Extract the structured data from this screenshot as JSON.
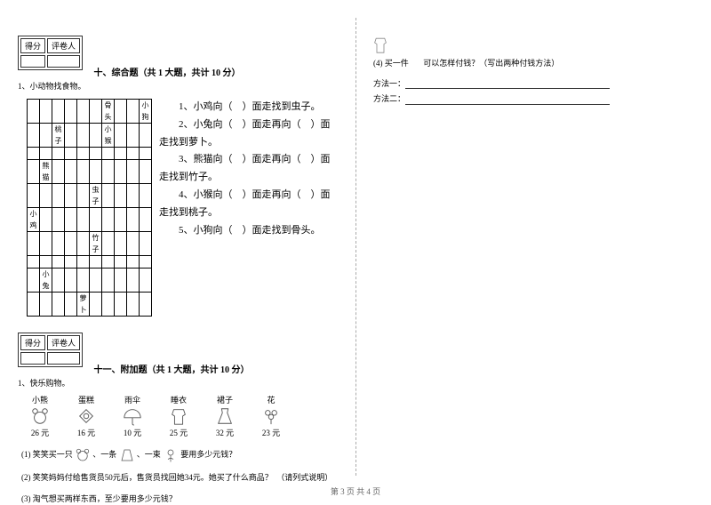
{
  "scorebox": {
    "c1": "得分",
    "c2": "评卷人"
  },
  "section10": {
    "title": "十、综合题（共 1 大题，共计 10 分）",
    "sub": "1、小动物找食物。",
    "grid_labels": {
      "r1c7": "骨头",
      "r1c10": "小狗",
      "r2c3": "桃子",
      "r2c7": "小猴",
      "r4c2": "熊猫",
      "r5c6": "虫子",
      "r6c1": "小鸡",
      "r7c6": "竹子",
      "r9c2": "小兔",
      "r10c5": "萝卜"
    },
    "lines": [
      "　　1、小鸡向（　）面走找到虫子。",
      "　　2、小兔向（　）面走再向（　）面走找到萝卜。",
      "　　3、熊猫向（　）面走再向（　）面走找到竹子。",
      "　　4、小猴向（　）面走再向（　）面走找到桃子。",
      "　　5、小狗向（　）面走找到骨头。"
    ]
  },
  "section11": {
    "title": "十一、附加题（共 1 大题，共计 10 分）",
    "sub": "1、快乐购物。",
    "items": [
      {
        "name": "小熊",
        "price": "26 元"
      },
      {
        "name": "蛋糕",
        "price": "16 元"
      },
      {
        "name": "雨伞",
        "price": "10 元"
      },
      {
        "name": "睡衣",
        "price": "25 元"
      },
      {
        "name": "裙子",
        "price": "32 元"
      },
      {
        "name": "花",
        "price": "23 元"
      }
    ],
    "q1_a": "(1) 笑笑买一只",
    "q1_b": "、一条",
    "q1_c": "、一束",
    "q1_d": "要用多少元钱？",
    "q2": "(2) 笑笑妈妈付给售货员50元后，售货员找回她34元。她买了什么商品？　（请列式说明）",
    "q3": "(3) 淘气想买两样东西，至少要用多少元钱？"
  },
  "right": {
    "q4a": "(4) 买一件",
    "q4b": "可以怎样付钱？（写出两种付钱方法）",
    "m1": "方法一：",
    "m2": "方法二："
  },
  "footer": "第 3 页 共 4 页"
}
